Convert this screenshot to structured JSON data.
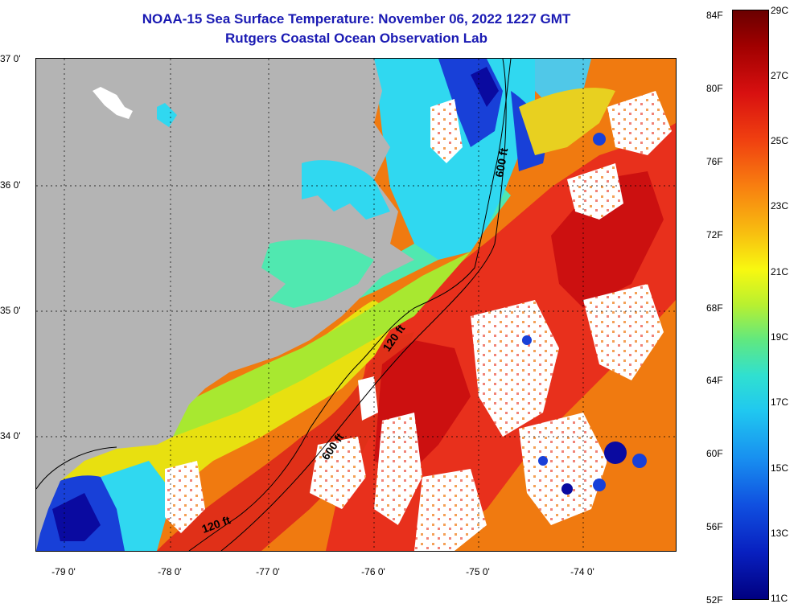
{
  "title": {
    "line1": "NOAA-15 Sea Surface Temperature:  November 06, 2022 1227 GMT",
    "line2": "Rutgers Coastal Ocean Observation Lab"
  },
  "map": {
    "lat_labels": [
      "37 0'",
      "36 0'",
      "35 0'",
      "34 0'"
    ],
    "lon_labels": [
      "-79 0'",
      "-78 0'",
      "-77 0'",
      "-76 0'",
      "-75 0'",
      "-74 0'"
    ],
    "contour_labels": [
      "600 ft",
      "120 ft",
      "600 ft",
      "120 ft"
    ],
    "colors": {
      "land": "#b4b4b4",
      "cloud": "#ffffff",
      "warm": "#e8301c",
      "hot": "#cc1010",
      "orange": "#f07a10",
      "yellow": "#e8e010",
      "cyan": "#30d8f0",
      "teal": "#50e8b0",
      "blue": "#1840d8",
      "navy": "#0a0aa0"
    }
  },
  "colorbar": {
    "fahrenheit_labels": [
      "84F",
      "80F",
      "76F",
      "72F",
      "68F",
      "64F",
      "60F",
      "56F",
      "52F"
    ],
    "celsius_labels": [
      "29C",
      "27C",
      "25C",
      "23C",
      "21C",
      "19C",
      "17C",
      "15C",
      "13C",
      "11C"
    ],
    "range_c": [
      11,
      29
    ],
    "range_f": [
      52,
      84
    ]
  }
}
